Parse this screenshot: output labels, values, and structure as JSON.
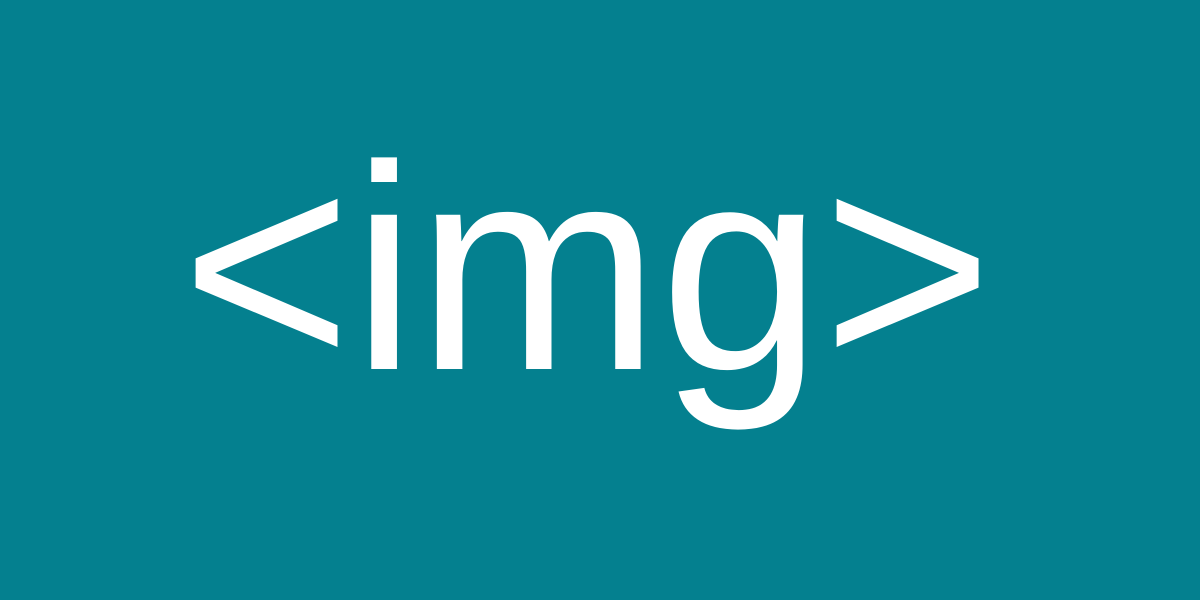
{
  "banner": {
    "text": "<img>",
    "background_color": "#04808f",
    "text_color": "#ffffff"
  }
}
